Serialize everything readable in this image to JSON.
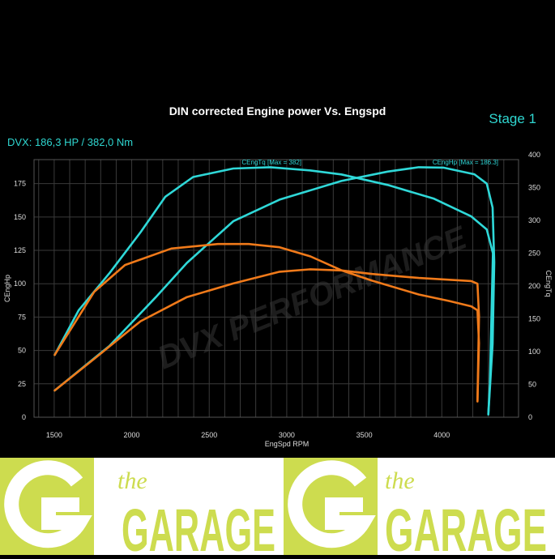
{
  "header": {
    "title": "DIN corrected Engine power Vs. Engspd",
    "stage": "Stage 1",
    "summary": "DVX:  186,3 HP / 382,0 Nm"
  },
  "watermark": "DVX PERFORMANCE",
  "logo": {
    "text_small": "the",
    "text_large": "GARAGE",
    "color": "#cddc4f",
    "count": 2
  },
  "chart_data": {
    "type": "line",
    "title": "DIN corrected Engine power Vs. Engspd",
    "xlabel": "EngSpd RPM",
    "ylabel": "CEngHp",
    "y2label": "CEngTq",
    "xlim": [
      1370,
      4495
    ],
    "ylim": [
      0,
      193
    ],
    "y2lim": [
      0,
      400
    ],
    "xticks": [
      1500,
      2000,
      2500,
      3000,
      3500,
      4000
    ],
    "yticks": [
      0,
      25,
      50,
      75,
      100,
      125,
      150,
      175
    ],
    "y2ticks": [
      0,
      50,
      100,
      150,
      200,
      250,
      300,
      350,
      400
    ],
    "grid": true,
    "annotations": [
      "CEngTq [Max = 382]",
      "CEngHp [Max = 186.3]"
    ],
    "colors": {
      "tuned": "#2fd8d8",
      "stock": "#f07a1a",
      "background": "#000000",
      "grid": "#3a3a3a"
    },
    "series": [
      {
        "axis": "right",
        "color": "#2fd8d8",
        "x": [
          1503,
          1658,
          1858,
          2057,
          2217,
          2396,
          2655,
          2894,
          3153,
          3352,
          3651,
          3950,
          4190,
          4290,
          4330,
          4320,
          4310,
          4300
        ],
        "y": [
          95,
          163,
          220,
          282,
          336,
          366,
          379,
          381,
          376,
          370,
          354,
          333,
          306,
          286,
          250,
          150,
          50,
          5
        ]
      },
      {
        "axis": "left",
        "color": "#2fd8d8",
        "x": [
          1503,
          1858,
          2156,
          2356,
          2655,
          2954,
          3352,
          3651,
          3851,
          4010,
          4210,
          4290,
          4328,
          4338,
          4328,
          4300
        ],
        "y": [
          20,
          53.6,
          90,
          115.6,
          146.8,
          163,
          177,
          184,
          187.3,
          187,
          182,
          175,
          157,
          116,
          55,
          2
        ]
      },
      {
        "axis": "right",
        "color": "#f07a1a",
        "x": [
          1503,
          1758,
          1957,
          2255,
          2555,
          2755,
          2954,
          3153,
          3352,
          3552,
          3851,
          4050,
          4190,
          4230,
          4240,
          4230
        ],
        "y": [
          95,
          191,
          232,
          257,
          264,
          264,
          259,
          245,
          224,
          208,
          187,
          177,
          169,
          163,
          113,
          24
        ]
      },
      {
        "axis": "left",
        "color": "#f07a1a",
        "x": [
          1503,
          1758,
          2057,
          2356,
          2655,
          2954,
          3153,
          3352,
          3552,
          3851,
          4190,
          4230,
          4240,
          4230
        ],
        "y": [
          20,
          43.7,
          71.9,
          90,
          100.2,
          109,
          110.8,
          110,
          107.3,
          104.3,
          102,
          100,
          76,
          12
        ]
      }
    ]
  }
}
